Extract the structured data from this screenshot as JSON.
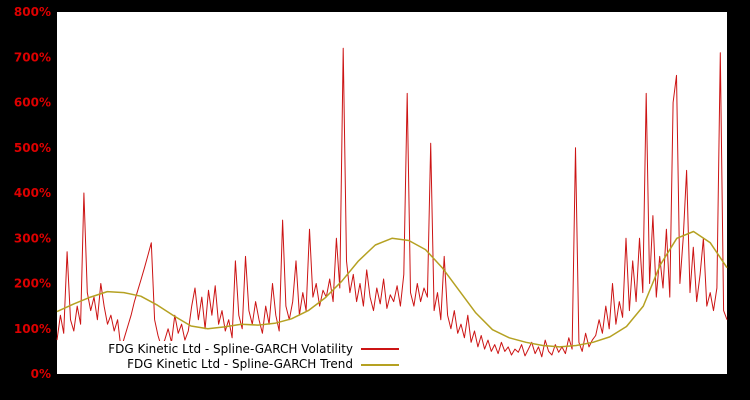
{
  "chart": {
    "background_color": "#000000",
    "plot_background_color": "#ffffff",
    "axis_label_color": "#dd0000"
  },
  "legend": {
    "volatility_label": "FDG Kinetic Ltd - Spline-GARCH Volatility",
    "trend_label": "FDG Kinetic Ltd - Spline-GARCH Trend"
  },
  "chart_data": {
    "type": "line",
    "title": "",
    "xlabel": "",
    "ylabel": "",
    "ylim": [
      0,
      800
    ],
    "y_tick_labels": [
      "0%",
      "100%",
      "200%",
      "300%",
      "400%",
      "500%",
      "600%",
      "700%",
      "800%"
    ],
    "x_tick_labels": [],
    "grid": false,
    "legend_position": "bottom-left",
    "series": [
      {
        "name": "FDG Kinetic Ltd - Spline-GARCH Volatility",
        "color": "#cc1414",
        "unit": "percent",
        "values": [
          75,
          130,
          90,
          270,
          120,
          95,
          150,
          110,
          400,
          180,
          140,
          170,
          120,
          200,
          150,
          110,
          130,
          95,
          120,
          55,
          80,
          105,
          130,
          160,
          185,
          210,
          235,
          262,
          290,
          120,
          85,
          60,
          75,
          100,
          70,
          130,
          90,
          110,
          75,
          95,
          150,
          190,
          120,
          170,
          100,
          185,
          130,
          195,
          110,
          140,
          95,
          120,
          80,
          250,
          130,
          100,
          260,
          140,
          110,
          160,
          120,
          90,
          150,
          110,
          200,
          130,
          95,
          340,
          150,
          120,
          160,
          250,
          130,
          180,
          140,
          320,
          170,
          200,
          150,
          185,
          170,
          210,
          160,
          300,
          190,
          720,
          250,
          180,
          220,
          160,
          200,
          150,
          230,
          170,
          140,
          190,
          155,
          210,
          145,
          175,
          160,
          195,
          150,
          220,
          620,
          180,
          150,
          200,
          160,
          190,
          170,
          510,
          140,
          180,
          120,
          260,
          130,
          100,
          140,
          90,
          110,
          80,
          130,
          70,
          95,
          60,
          85,
          55,
          75,
          50,
          65,
          45,
          70,
          50,
          60,
          42,
          55,
          48,
          65,
          40,
          55,
          70,
          45,
          60,
          38,
          75,
          50,
          42,
          65,
          48,
          60,
          45,
          80,
          55,
          500,
          70,
          50,
          90,
          60,
          75,
          85,
          120,
          90,
          150,
          100,
          200,
          110,
          160,
          125,
          300,
          140,
          250,
          160,
          300,
          180,
          620,
          200,
          350,
          170,
          260,
          190,
          320,
          170,
          600,
          660,
          200,
          300,
          450,
          180,
          280,
          160,
          220,
          300,
          150,
          180,
          140,
          190,
          710,
          140,
          120
        ]
      },
      {
        "name": "FDG Kinetic Ltd - Spline-GARCH Trend",
        "color": "#b5a122",
        "unit": "percent",
        "values": [
          138,
          155,
          170,
          182,
          180,
          172,
          152,
          128,
          106,
          100,
          104,
          110,
          108,
          112,
          122,
          140,
          168,
          205,
          250,
          285,
          300,
          295,
          275,
          235,
          185,
          135,
          98,
          80,
          70,
          63,
          60,
          63,
          70,
          82,
          105,
          150,
          240,
          300,
          315,
          290,
          235
        ]
      }
    ]
  }
}
